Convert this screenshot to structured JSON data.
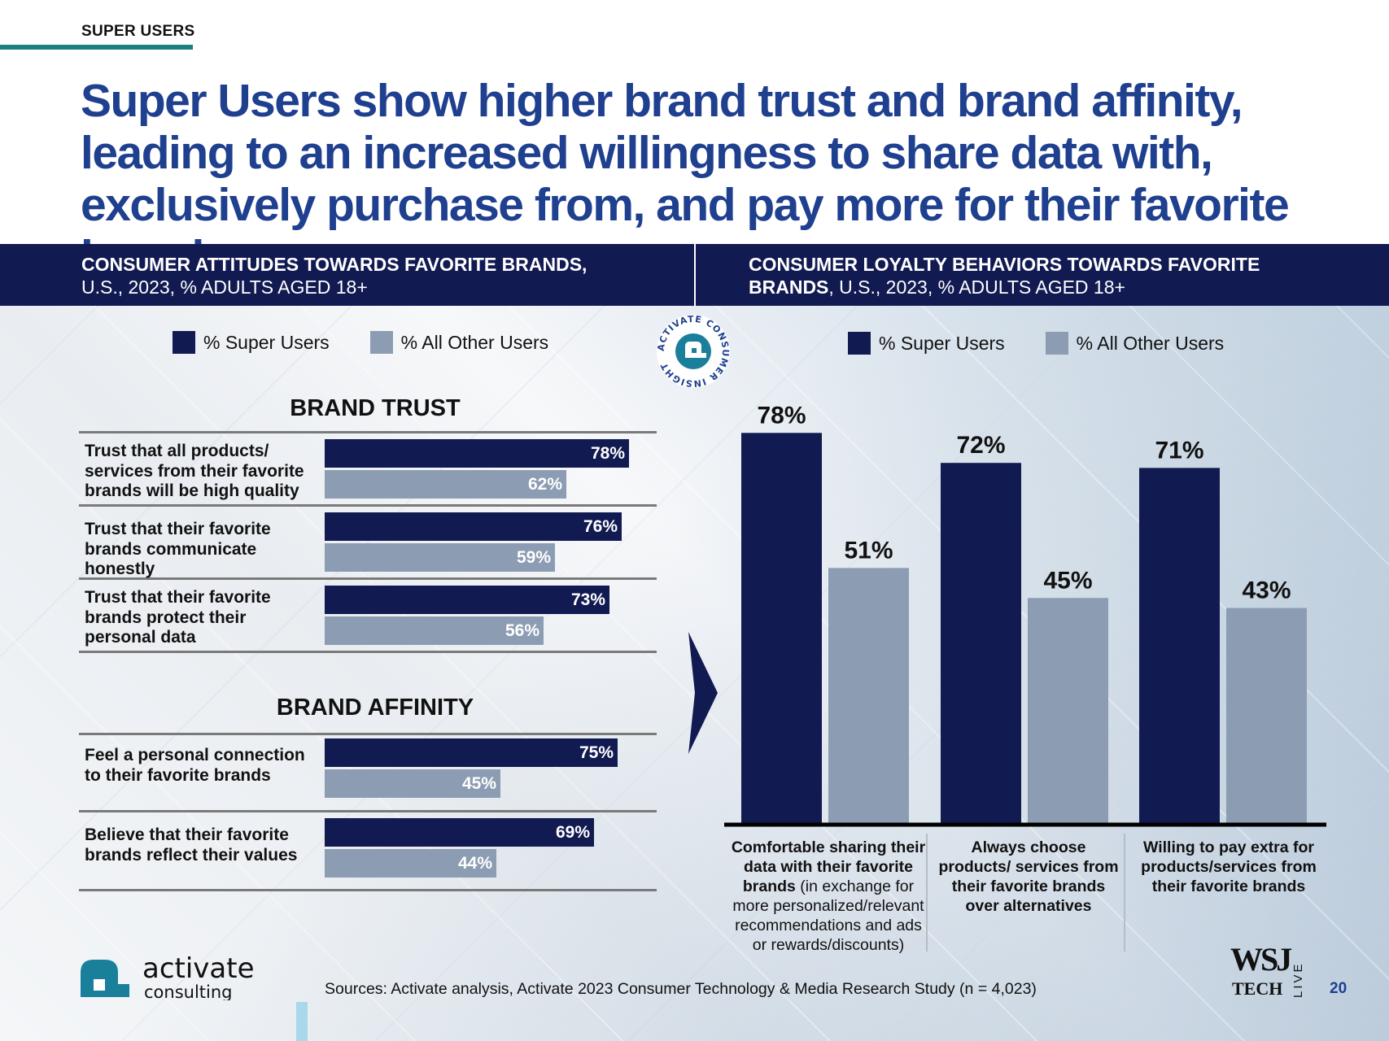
{
  "section_tag": "SUPER USERS",
  "headline": "Super Users show higher brand trust and brand affinity, leading to an increased willingness to share data with, exclusively purchase from, and pay more for their favorite brands",
  "left_panel": {
    "title_bold": "CONSUMER ATTITUDES TOWARDS FAVORITE BRANDS,",
    "title_rest": "U.S., 2023, % ADULTS AGED 18+"
  },
  "right_panel": {
    "title_bold_1": "CONSUMER LOYALTY BEHAVIORS TOWARDS FAVORITE",
    "title_bold_2": "BRANDS",
    "title_rest": ", U.S., 2023, % ADULTS AGED 18+"
  },
  "legend": {
    "super": "% Super Users",
    "other": "% All Other Users"
  },
  "badge": {
    "text": "ACTIVATE CONSUMER INSIGHT"
  },
  "colors": {
    "super": "#121a52",
    "other": "#8c9db3",
    "headline": "#1f3f8f",
    "accent": "#1a7f7f"
  },
  "chart_data": [
    {
      "type": "bar",
      "orientation": "horizontal",
      "title": "BRAND TRUST",
      "categories": [
        "Trust that all products/ services from their favorite brands will be high quality",
        "Trust that their favorite brands communicate honestly",
        "Trust that their favorite brands protect their personal data"
      ],
      "series": [
        {
          "name": "% Super Users",
          "values": [
            78,
            76,
            73
          ],
          "labels": [
            "78%",
            "76%",
            "73%"
          ]
        },
        {
          "name": "% All Other Users",
          "values": [
            62,
            59,
            56
          ],
          "labels": [
            "62%",
            "59%",
            "56%"
          ]
        }
      ],
      "xlim": [
        0,
        100
      ]
    },
    {
      "type": "bar",
      "orientation": "horizontal",
      "title": "BRAND AFFINITY",
      "categories": [
        "Feel a personal connection to their favorite brands",
        "Believe that their favorite brands reflect their values"
      ],
      "series": [
        {
          "name": "% Super Users",
          "values": [
            75,
            69
          ],
          "labels": [
            "75%",
            "69%"
          ]
        },
        {
          "name": "% All Other Users",
          "values": [
            45,
            44
          ],
          "labels": [
            "45%",
            "44%"
          ]
        }
      ],
      "xlim": [
        0,
        100
      ]
    },
    {
      "type": "bar",
      "orientation": "vertical",
      "categories": [
        {
          "bold": "Comfortable sharing their data with their favorite brands",
          "normal": " (in exchange for more personalized/relevant recommendations and ads or rewards/discounts)"
        },
        {
          "bold": "Always choose products/ services from their favorite brands over alternatives",
          "normal": ""
        },
        {
          "bold": "Willing to pay extra for products/services from their favorite brands",
          "normal": ""
        }
      ],
      "series": [
        {
          "name": "% Super Users",
          "values": [
            78,
            72,
            71
          ],
          "labels": [
            "78%",
            "72%",
            "71%"
          ]
        },
        {
          "name": "% All Other Users",
          "values": [
            51,
            45,
            43
          ],
          "labels": [
            "51%",
            "45%",
            "43%"
          ]
        }
      ],
      "ylim": [
        0,
        100
      ]
    }
  ],
  "footer": {
    "logo_top": "activate",
    "logo_bottom": "consulting",
    "source": "Sources: Activate analysis, Activate 2023 Consumer Technology & Media Research Study (n = 4,023)",
    "wsj_top": "WSJ",
    "wsj_bottom": "TECH",
    "wsj_side": "LIVE",
    "page_number": "20"
  }
}
